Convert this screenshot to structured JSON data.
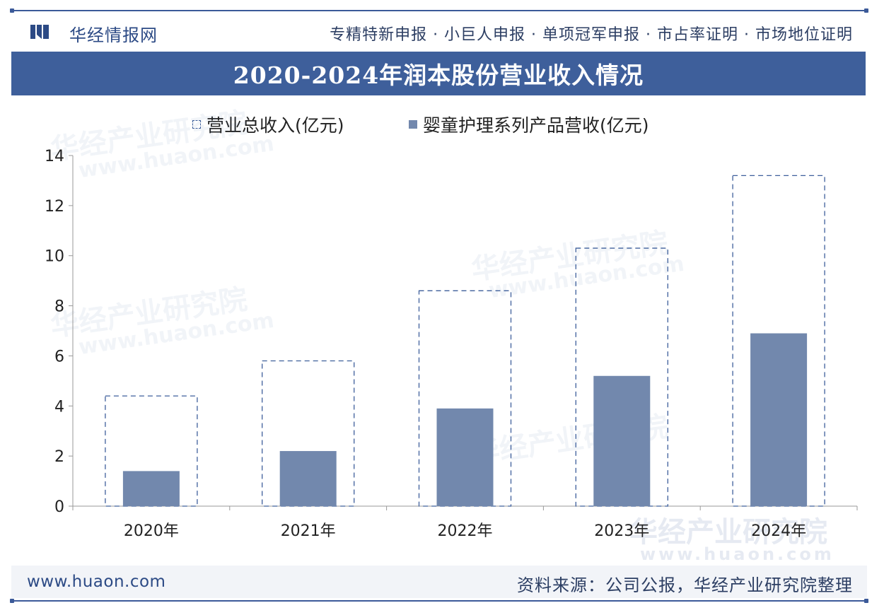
{
  "header": {
    "brand": "华经情报网",
    "services": "专精特新申报 · 小巨人申报 · 单项冠军申报 · 市占率证明 · 市场地位证明"
  },
  "watermarks": {
    "company": "华经产业研究院",
    "site": "www.huaon.com"
  },
  "footer": {
    "site": "www.huaon.com",
    "source": "资料来源：公司公报，华经产业研究院整理"
  },
  "colors": {
    "primary": "#3e5f9b",
    "bar": "#7288ad",
    "axis": "#999999"
  },
  "chart_data": {
    "type": "bar",
    "title": "2020-2024年润本股份营业收入情况",
    "categories": [
      "2020年",
      "2021年",
      "2022年",
      "2023年",
      "2024年"
    ],
    "series": [
      {
        "name": "营业总收入(亿元)",
        "style": "dashed-outline",
        "values": [
          4.4,
          5.8,
          8.6,
          10.3,
          13.2
        ]
      },
      {
        "name": "婴童护理系列产品营收(亿元)",
        "style": "solid",
        "values": [
          1.4,
          2.2,
          3.9,
          5.2,
          6.9
        ]
      }
    ],
    "ylim": [
      0,
      14
    ],
    "yticks": [
      0,
      2,
      4,
      6,
      8,
      10,
      12,
      14
    ],
    "xlabel": "",
    "ylabel": "",
    "legend_position": "top-center",
    "grid": false
  }
}
